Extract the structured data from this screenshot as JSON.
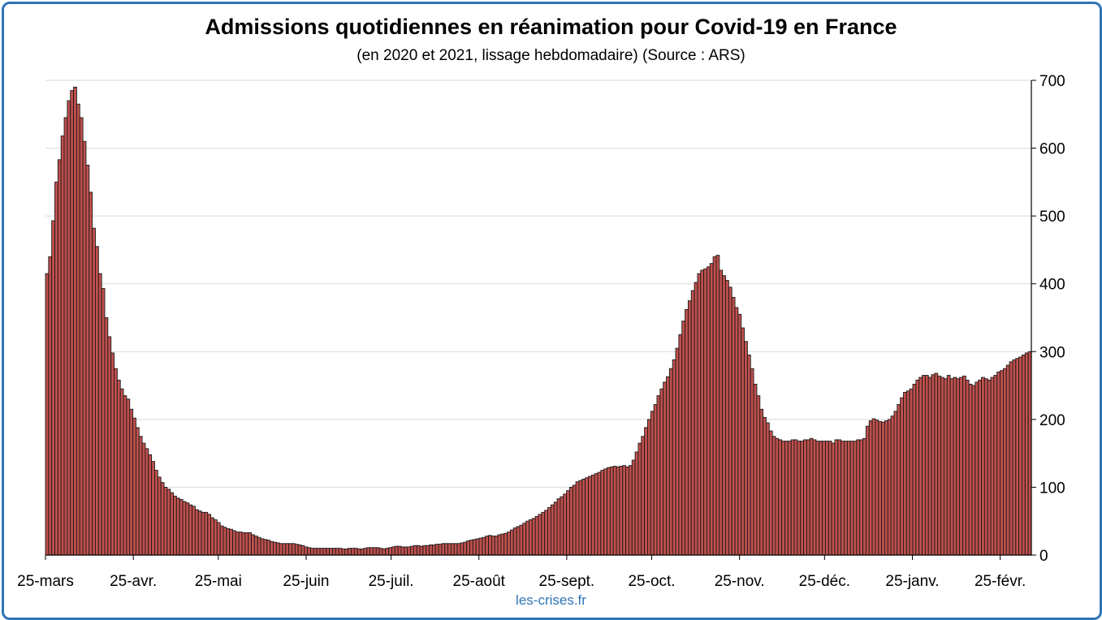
{
  "chart_data": {
    "type": "bar",
    "title": "Admissions quotidiennes en réanimation pour Covid-19 en France",
    "subtitle": "(en 2020 et 2021, lissage hebdomadaire) (Source : ARS)",
    "ylim": [
      0,
      700
    ],
    "y_ticks": [
      0,
      100,
      200,
      300,
      400,
      500,
      600,
      700
    ],
    "y_axis_position": "right",
    "grid": true,
    "bar_color": "#c0504d",
    "x_start": "2020-03-25",
    "x_end": "2021-03-07",
    "x_ticks": [
      {
        "date": "2020-03-25",
        "label": "25-mars"
      },
      {
        "date": "2020-04-25",
        "label": "25-avr."
      },
      {
        "date": "2020-05-25",
        "label": "25-mai"
      },
      {
        "date": "2020-06-25",
        "label": "25-juin"
      },
      {
        "date": "2020-07-25",
        "label": "25-juil."
      },
      {
        "date": "2020-08-25",
        "label": "25-août"
      },
      {
        "date": "2020-09-25",
        "label": "25-sept."
      },
      {
        "date": "2020-10-25",
        "label": "25-oct."
      },
      {
        "date": "2020-11-25",
        "label": "25-nov."
      },
      {
        "date": "2020-12-25",
        "label": "25-déc."
      },
      {
        "date": "2021-01-25",
        "label": "25-janv."
      },
      {
        "date": "2021-02-25",
        "label": "25-févr."
      }
    ],
    "values": [
      415,
      440,
      493,
      550,
      583,
      618,
      645,
      670,
      685,
      690,
      665,
      645,
      610,
      575,
      535,
      482,
      455,
      415,
      393,
      350,
      322,
      298,
      275,
      258,
      245,
      235,
      230,
      215,
      202,
      188,
      175,
      165,
      157,
      148,
      138,
      125,
      115,
      107,
      100,
      97,
      92,
      87,
      84,
      82,
      79,
      77,
      74,
      72,
      67,
      65,
      63,
      63,
      60,
      55,
      52,
      48,
      43,
      41,
      39,
      38,
      36,
      34,
      34,
      33,
      33,
      33,
      30,
      28,
      26,
      24,
      23,
      22,
      20,
      19,
      18,
      17,
      17,
      17,
      17,
      17,
      16,
      15,
      14,
      12,
      11,
      10,
      10,
      10,
      10,
      10,
      10,
      10,
      10,
      10,
      10,
      9,
      9,
      10,
      10,
      10,
      9,
      9,
      10,
      11,
      11,
      11,
      11,
      10,
      9,
      10,
      11,
      12,
      13,
      13,
      12,
      12,
      12,
      13,
      14,
      14,
      13,
      14,
      14,
      15,
      15,
      16,
      16,
      17,
      17,
      17,
      17,
      17,
      17,
      18,
      19,
      21,
      22,
      23,
      24,
      25,
      26,
      28,
      29,
      28,
      28,
      30,
      31,
      32,
      34,
      37,
      40,
      42,
      44,
      47,
      50,
      52,
      54,
      57,
      60,
      63,
      66,
      70,
      74,
      78,
      83,
      86,
      90,
      95,
      100,
      103,
      108,
      110,
      112,
      114,
      116,
      118,
      120,
      122,
      125,
      127,
      129,
      130,
      131,
      130,
      131,
      132,
      130,
      132,
      140,
      152,
      165,
      175,
      188,
      200,
      212,
      222,
      235,
      245,
      255,
      263,
      275,
      288,
      305,
      325,
      345,
      362,
      375,
      390,
      402,
      415,
      420,
      422,
      425,
      430,
      440,
      442,
      420,
      412,
      405,
      395,
      380,
      365,
      355,
      335,
      315,
      295,
      275,
      252,
      235,
      215,
      203,
      195,
      183,
      175,
      172,
      170,
      168,
      168,
      168,
      170,
      170,
      168,
      168,
      170,
      170,
      172,
      170,
      168,
      168,
      168,
      168,
      168,
      165,
      170,
      170,
      168,
      168,
      168,
      168,
      168,
      170,
      170,
      172,
      190,
      198,
      201,
      199,
      197,
      196,
      198,
      200,
      205,
      212,
      222,
      232,
      240,
      242,
      245,
      252,
      258,
      262,
      265,
      265,
      262,
      266,
      268,
      264,
      262,
      260,
      265,
      260,
      262,
      260,
      262,
      264,
      258,
      252,
      250,
      255,
      258,
      262,
      260,
      258,
      262,
      265,
      270,
      272,
      275,
      280,
      285,
      288,
      290,
      292,
      295,
      298,
      300
    ]
  },
  "watermark": "les-crises.fr"
}
